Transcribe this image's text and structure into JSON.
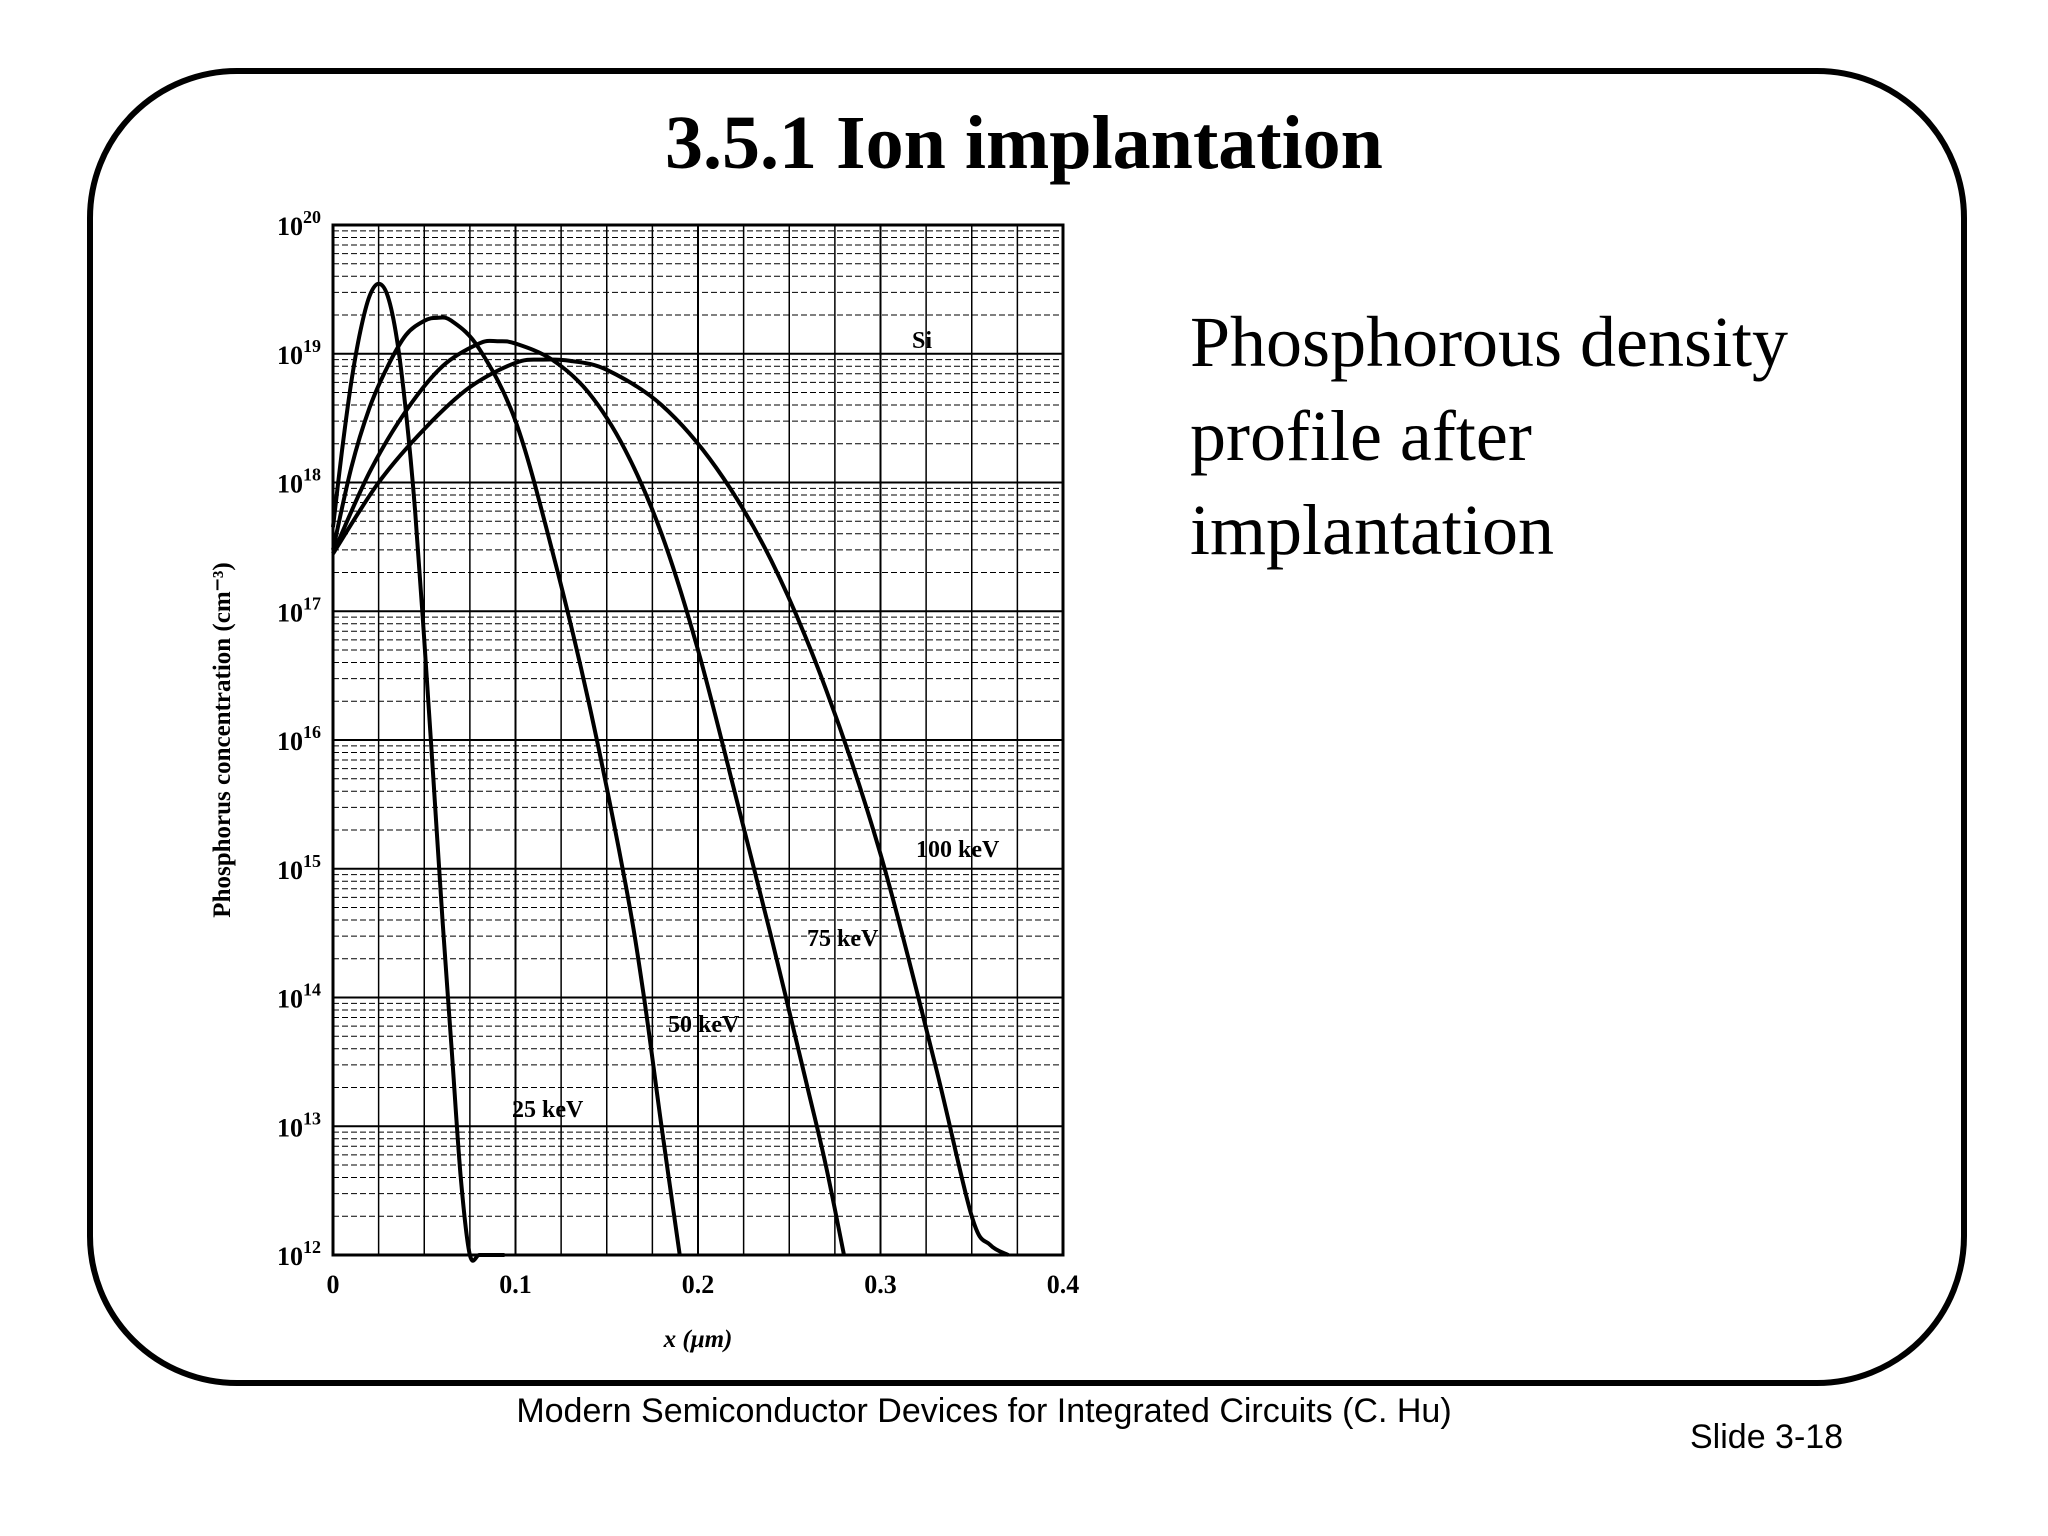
{
  "slide": {
    "title": "3.5.1  Ion implantation",
    "side_text": [
      "Phosphorous density",
      "profile after",
      "implantation"
    ],
    "footer": "Modern Semiconductor Devices for Integrated Circuits (C. Hu)",
    "slide_number": "Slide 3-18"
  },
  "chart_data": {
    "type": "line",
    "title": "",
    "xlabel": "x (μm)",
    "ylabel": "Phosphorus concentration (cm⁻³)",
    "xlim": [
      0,
      0.4
    ],
    "ylim": [
      1000000000000.0,
      1e+20
    ],
    "yscale": "log",
    "grid": true,
    "x_ticks": [
      "0",
      "0.1",
      "0.2",
      "0.3",
      "0.4"
    ],
    "y_ticks": [
      {
        "base": "10",
        "exp": "12"
      },
      {
        "base": "10",
        "exp": "13"
      },
      {
        "base": "10",
        "exp": "14"
      },
      {
        "base": "10",
        "exp": "15"
      },
      {
        "base": "10",
        "exp": "16"
      },
      {
        "base": "10",
        "exp": "17"
      },
      {
        "base": "10",
        "exp": "18"
      },
      {
        "base": "10",
        "exp": "19"
      },
      {
        "base": "10",
        "exp": "20"
      }
    ],
    "annotation": "Si",
    "series": [
      {
        "name": "25 keV",
        "x": [
          0,
          0.005,
          0.01,
          0.015,
          0.02,
          0.025,
          0.03,
          0.035,
          0.04,
          0.045,
          0.05,
          0.055,
          0.06,
          0.065,
          0.07,
          0.075,
          0.08,
          0.085,
          0.09,
          0.094
        ],
        "y": [
          4.5e+17,
          1.8e+18,
          6e+18,
          1.5e+19,
          2.8e+19,
          3.5e+19,
          2.8e+19,
          1.3e+19,
          3.5e+18,
          6e+17,
          6e+16,
          5000000000000000.0,
          400000000000000.0,
          40000000000000.0,
          4000000000000.0,
          1000000000000.0,
          1000000000000.0,
          1000000000000.0,
          1000000000000.0,
          1000000000000.0
        ]
      },
      {
        "name": "50 keV",
        "x": [
          0,
          0.01,
          0.02,
          0.03,
          0.04,
          0.05,
          0.057,
          0.065,
          0.08,
          0.1,
          0.12,
          0.14,
          0.16,
          0.17,
          0.18,
          0.19
        ],
        "y": [
          3e+17,
          1.3e+18,
          3.8e+18,
          8e+18,
          1.4e+19,
          1.8e+19,
          1.9e+19,
          1.8e+19,
          1.1e+19,
          3e+18,
          3e+17,
          2e+16,
          800000000000000.0,
          110000000000000.0,
          10000000000000.0,
          1000000000000.0
        ]
      },
      {
        "name": "75 keV",
        "x": [
          0,
          0.02,
          0.04,
          0.06,
          0.08,
          0.09,
          0.1,
          0.12,
          0.14,
          0.16,
          0.18,
          0.2,
          0.22,
          0.24,
          0.26,
          0.27,
          0.28
        ],
        "y": [
          2.8e+17,
          1.2e+18,
          3.6e+18,
          8e+18,
          1.2e+19,
          1.25e+19,
          1.2e+19,
          9e+18,
          5e+18,
          1.8e+18,
          4e+17,
          5e+16,
          4000000000000000.0,
          300000000000000.0,
          20000000000000.0,
          5000000000000.0,
          1000000000000.0
        ]
      },
      {
        "name": "100 keV",
        "x": [
          0,
          0.025,
          0.05,
          0.075,
          0.1,
          0.115,
          0.13,
          0.15,
          0.18,
          0.21,
          0.24,
          0.27,
          0.3,
          0.33,
          0.35,
          0.36,
          0.37
        ],
        "y": [
          2.8e+17,
          1e+18,
          2.6e+18,
          5.5e+18,
          8.5e+18,
          9e+18,
          8.8e+18,
          7.5e+18,
          4e+18,
          1.3e+18,
          2.5e+17,
          2.5e+16,
          1300000000000000.0,
          30000000000000.0,
          2000000000000.0,
          1200000000000.0,
          1000000000000.0
        ]
      }
    ]
  }
}
